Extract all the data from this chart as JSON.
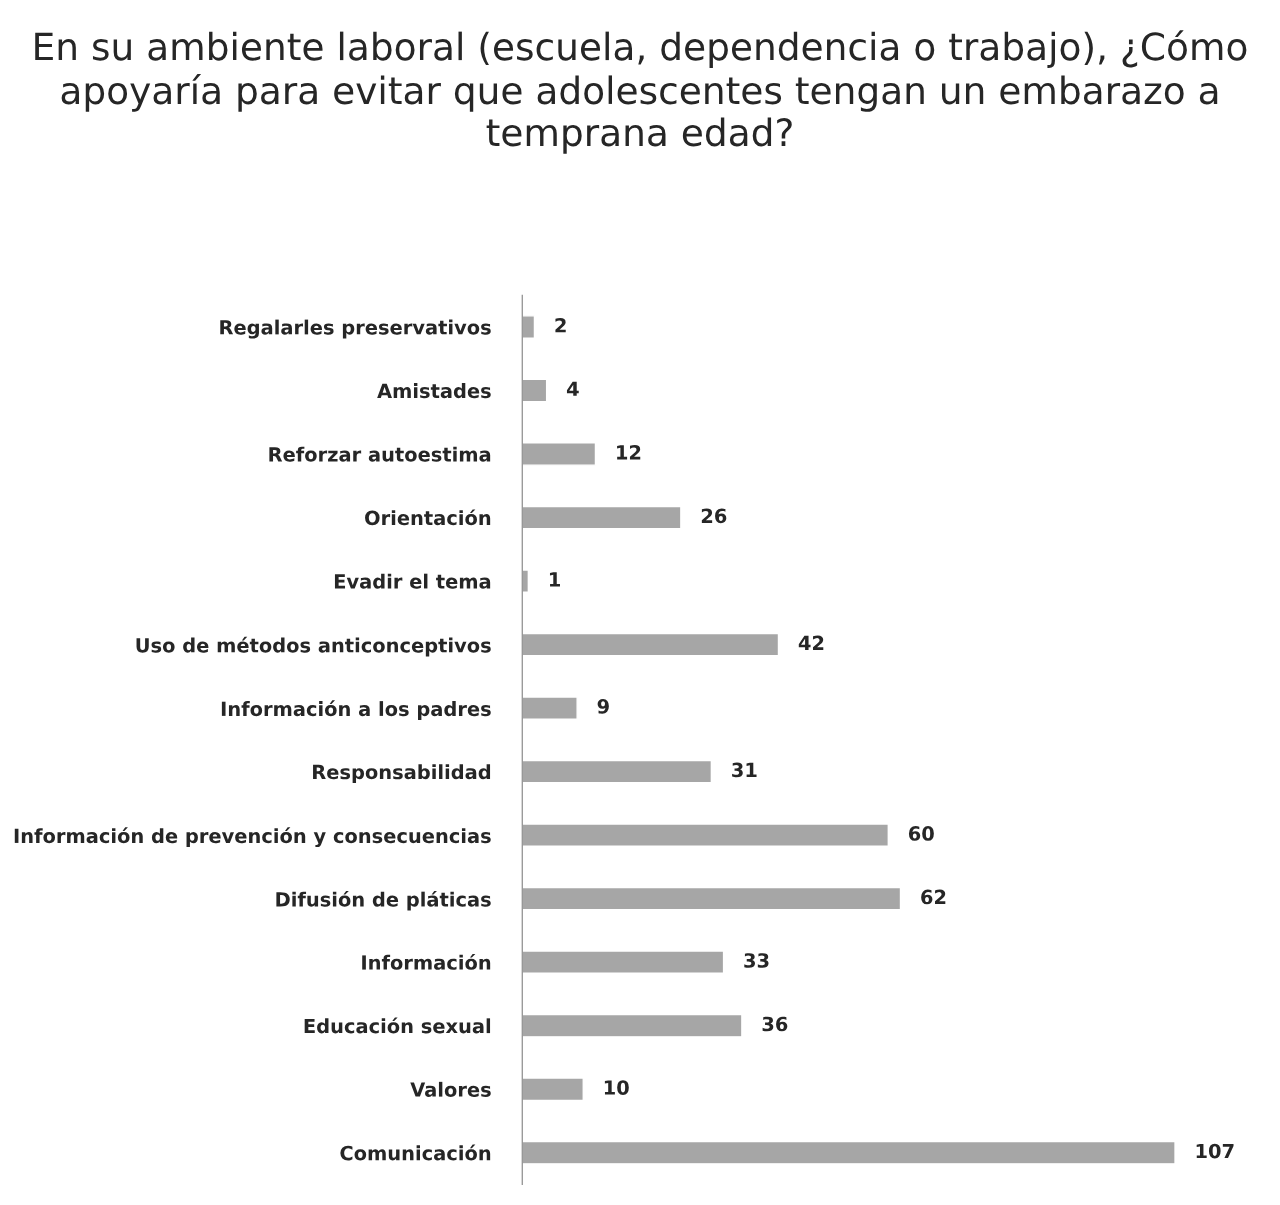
{
  "chart_data": {
    "type": "bar",
    "orientation": "horizontal",
    "title": "En su ambiente laboral (escuela, dependencia o trabajo), ¿Cómo apoyaría para evitar que adolescentes tengan un embarazo a temprana edad?",
    "categories": [
      "Regalarles preservativos",
      "Amistades",
      "Reforzar autoestima",
      "Orientación",
      "Evadir el tema",
      "Uso de métodos anticonceptivos",
      "Información a los padres",
      "Responsabilidad",
      "Información de prevención y consecuencias",
      "Difusión de pláticas",
      "Información",
      "Educación sexual",
      "Valores",
      "Comunicación"
    ],
    "values": [
      2,
      4,
      12,
      26,
      1,
      42,
      9,
      31,
      60,
      62,
      33,
      36,
      10,
      107
    ],
    "color": "#a6a6a6",
    "data_labels": true,
    "tick_labels": "y",
    "grid": false,
    "legend": false
  }
}
